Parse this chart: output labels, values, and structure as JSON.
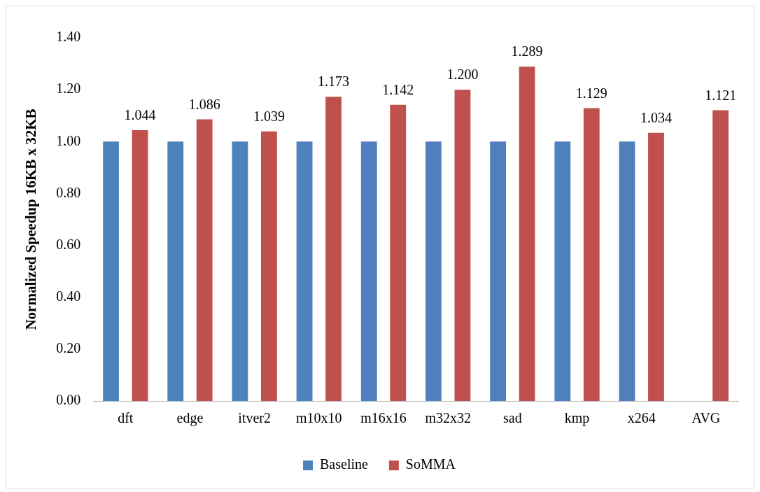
{
  "chart_data": {
    "type": "bar",
    "ylabel": "Normalized Speedup 16KB x 32KB",
    "categories": [
      "dft",
      "edge",
      "itver2",
      "m10x10",
      "m16x16",
      "m32x32",
      "sad",
      "kmp",
      "x264",
      "AVG"
    ],
    "series": [
      {
        "name": "Baseline",
        "color": "#4f81bd",
        "values": [
          1,
          1,
          1,
          1,
          1,
          1,
          1,
          1,
          1,
          null
        ]
      },
      {
        "name": "SoMMA",
        "color": "#c0504d",
        "values": [
          1.044,
          1.086,
          1.039,
          1.173,
          1.142,
          1.2,
          1.289,
          1.129,
          1.034,
          1.121
        ],
        "value_labels": [
          "1.044",
          "1.086",
          "1.039",
          "1.173",
          "1.142",
          "1.200",
          "1.289",
          "1.129",
          "1.034",
          "1.121"
        ]
      }
    ],
    "ylim": [
      0,
      1.4
    ],
    "yticks": [
      {
        "value": 0,
        "label": "0.00"
      },
      {
        "value": 0.2,
        "label": "0.20"
      },
      {
        "value": 0.4,
        "label": "0.40"
      },
      {
        "value": 0.6,
        "label": "0.60"
      },
      {
        "value": 0.8,
        "label": "0.80"
      },
      {
        "value": 1,
        "label": "1.00"
      },
      {
        "value": 1.2,
        "label": "1.20"
      },
      {
        "value": 1.4,
        "label": "1.40"
      }
    ],
    "grid": false,
    "legend": "bottom"
  }
}
